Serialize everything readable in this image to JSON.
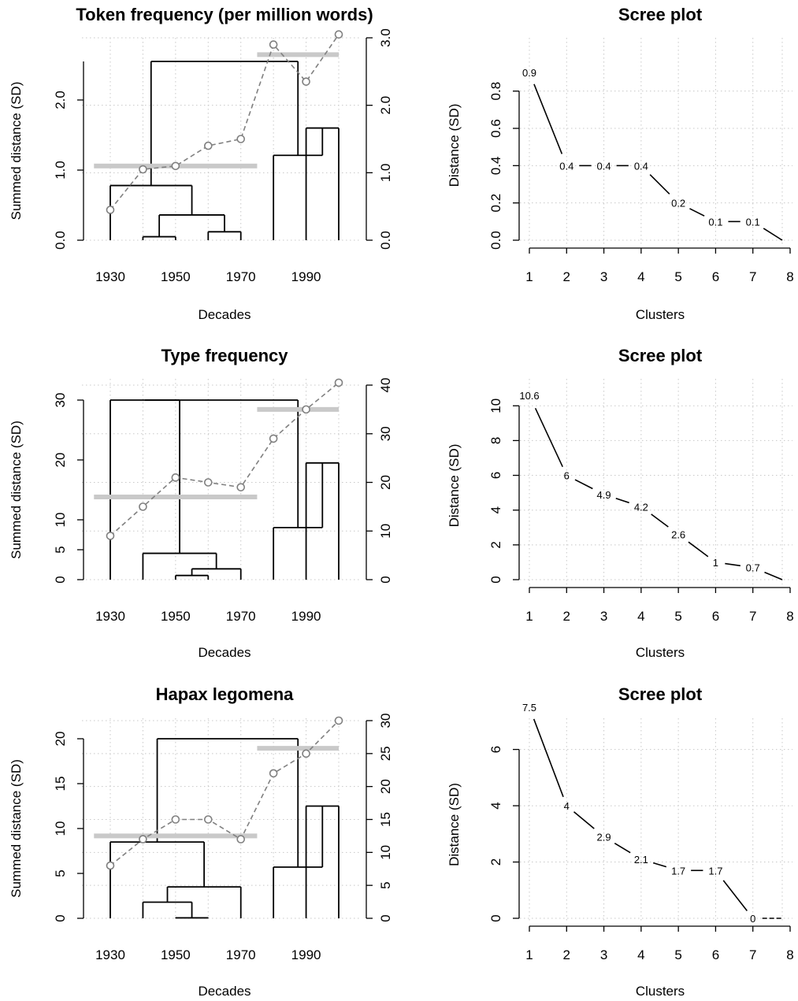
{
  "chart_data": [
    {
      "type": "dendrogram",
      "title": "Token frequency (per million words)",
      "xlabel": "Decades",
      "ylabel": "Summed distance (SD)",
      "x_ticks": [
        "1930",
        "1950",
        "1970",
        "1990"
      ],
      "xlim": [
        1925,
        2000
      ],
      "ylim": [
        0,
        2.55
      ],
      "y_ticks": [
        "0.0",
        "1.0",
        "2.0"
      ],
      "y2lim": [
        0,
        3.0
      ],
      "y2_ticks": [
        "0.0",
        "1.0",
        "2.0",
        "3.0"
      ],
      "grid": true,
      "decades": [
        1930,
        1940,
        1950,
        1960,
        1970,
        1980,
        1990,
        2000
      ],
      "merges": [
        {
          "left": 1940,
          "right": 1950,
          "height": 0.05
        },
        {
          "left": 1960,
          "right": 1970,
          "height": 0.12
        },
        {
          "left": 1945,
          "right": 1965,
          "height": 0.36
        },
        {
          "left": 1930,
          "right": 1955,
          "height": 0.78
        },
        {
          "left": 1990,
          "right": 2000,
          "height": 1.6
        },
        {
          "left": 1980,
          "right": 1995,
          "height": 1.21
        },
        {
          "left": 1950,
          "right": 1990,
          "height": 2.55
        }
      ],
      "merge_structure": [
        [
          1940,
          1950
        ],
        [
          1960,
          1970
        ],
        [
          "m0",
          "m1"
        ],
        [
          1930,
          "m2"
        ],
        [
          1990,
          2000
        ],
        [
          1980,
          "m4"
        ],
        [
          "m3",
          "m5"
        ]
      ],
      "series": [
        {
          "x": [
            1930,
            1940,
            1950,
            1960,
            1970,
            1980,
            1990,
            2000
          ],
          "values": [
            0.45,
            1.05,
            1.1,
            1.4,
            1.5,
            2.9,
            2.35,
            3.05
          ]
        }
      ],
      "cluster_means": [
        {
          "x_from": 1925,
          "x_to": 1975,
          "value": 1.1
        },
        {
          "x_from": 1975,
          "x_to": 2000,
          "value": 2.75
        }
      ]
    },
    {
      "type": "line",
      "title": "Scree plot",
      "xlabel": "Clusters",
      "ylabel": "Distance (SD)",
      "x": [
        1,
        2,
        3,
        4,
        5,
        6,
        7,
        8
      ],
      "values": [
        0.9,
        0.4,
        0.4,
        0.4,
        0.2,
        0.1,
        0.1,
        0
      ],
      "value_labels": [
        "0.9",
        "0.4",
        "0.4",
        "0.4",
        "0.2",
        "0.1",
        "0.1",
        ""
      ],
      "xlim": [
        1,
        8
      ],
      "ylim": [
        0,
        0.9
      ],
      "x_ticks": [
        "1",
        "2",
        "3",
        "4",
        "5",
        "6",
        "7",
        "8"
      ],
      "y_ticks": [
        "0.0",
        "0.2",
        "0.4",
        "0.6",
        "0.8"
      ],
      "grid": true
    },
    {
      "type": "dendrogram",
      "title": "Type frequency",
      "xlabel": "Decades",
      "ylabel": "Summed distance (SD)",
      "x_ticks": [
        "1930",
        "1950",
        "1970",
        "1990"
      ],
      "xlim": [
        1925,
        2000
      ],
      "ylim": [
        0,
        30
      ],
      "y_ticks": [
        "0",
        "5",
        "10",
        "20",
        "30"
      ],
      "y2lim": [
        0,
        40
      ],
      "y2_ticks": [
        "0",
        "10",
        "20",
        "30",
        "40"
      ],
      "grid": true,
      "decades": [
        1930,
        1940,
        1950,
        1960,
        1970,
        1980,
        1990,
        2000
      ],
      "merges": [
        {
          "left": 1950,
          "right": 1960,
          "height": 0.7
        },
        {
          "left": 1955,
          "right": 1970,
          "height": 1.8
        },
        {
          "left": 1940,
          "right": 1962.5,
          "height": 4.4
        },
        {
          "left": 1930,
          "right": 1951.25,
          "height": 30
        },
        {
          "left": 1990,
          "right": 2000,
          "height": 19.5
        },
        {
          "left": 1980,
          "right": 1995,
          "height": 8.7
        },
        {
          "left": 1950,
          "right": 1990,
          "height": 30
        }
      ],
      "merge_structure": [
        [
          1950,
          1960
        ],
        [
          "m0",
          1970
        ],
        [
          1940,
          "m1"
        ],
        [
          1930,
          "m2"
        ],
        [
          1990,
          2000
        ],
        [
          1980,
          "m4"
        ],
        [
          "m3",
          "m5"
        ]
      ],
      "series": [
        {
          "x": [
            1930,
            1940,
            1950,
            1960,
            1970,
            1980,
            1990,
            2000
          ],
          "values": [
            9,
            15,
            21,
            20,
            19,
            29,
            35,
            40.5
          ]
        }
      ],
      "cluster_means": [
        {
          "x_from": 1925,
          "x_to": 1975,
          "value": 17
        },
        {
          "x_from": 1975,
          "x_to": 2000,
          "value": 35
        }
      ]
    },
    {
      "type": "line",
      "title": "Scree plot",
      "xlabel": "Clusters",
      "ylabel": "Distance (SD)",
      "x": [
        1,
        2,
        3,
        4,
        5,
        6,
        7,
        8
      ],
      "values": [
        10.6,
        6,
        4.9,
        4.2,
        2.6,
        1,
        0.7,
        0
      ],
      "value_labels": [
        "10.6",
        "6",
        "4.9",
        "4.2",
        "2.6",
        "1",
        "0.7",
        ""
      ],
      "xlim": [
        1,
        8
      ],
      "ylim": [
        0,
        10.6
      ],
      "x_ticks": [
        "1",
        "2",
        "3",
        "4",
        "5",
        "6",
        "7",
        "8"
      ],
      "y_ticks": [
        "0",
        "2",
        "4",
        "6",
        "8",
        "10"
      ],
      "grid": true
    },
    {
      "type": "dendrogram",
      "title": "Hapax legomena",
      "xlabel": "Decades",
      "ylabel": "Summed distance (SD)",
      "x_ticks": [
        "1930",
        "1950",
        "1970",
        "1990"
      ],
      "xlim": [
        1925,
        2000
      ],
      "ylim": [
        0,
        20
      ],
      "y_ticks": [
        "0",
        "5",
        "10",
        "15",
        "20"
      ],
      "y2lim": [
        0,
        30
      ],
      "y2_ticks": [
        "0",
        "5",
        "10",
        "15",
        "20",
        "25",
        "30"
      ],
      "grid": true,
      "decades": [
        1930,
        1940,
        1950,
        1960,
        1970,
        1980,
        1990,
        2000
      ],
      "merges": [
        {
          "left": 1950,
          "right": 1960,
          "height": 0.05
        },
        {
          "left": 1940,
          "right": 1955,
          "height": 1.8
        },
        {
          "left": 1955,
          "right": 1970,
          "height": 3.5
        },
        {
          "left": 1930,
          "right": 1950,
          "height": 8.5
        },
        {
          "left": 1990,
          "right": 2000,
          "height": 12.5
        },
        {
          "left": 1980,
          "right": 1995,
          "height": 5.7
        },
        {
          "left": 1950,
          "right": 1990,
          "height": 20
        }
      ],
      "merge_structure": [
        [
          1950,
          1960
        ],
        [
          1940,
          "m0"
        ],
        [
          "m1",
          1970
        ],
        [
          1930,
          "m2"
        ],
        [
          1990,
          2000
        ],
        [
          1980,
          "m4"
        ],
        [
          "m3",
          "m5"
        ]
      ],
      "series": [
        {
          "x": [
            1930,
            1940,
            1950,
            1960,
            1970,
            1980,
            1990,
            2000
          ],
          "values": [
            8,
            12,
            15,
            15,
            12,
            22,
            25,
            30
          ]
        }
      ],
      "cluster_means": [
        {
          "x_from": 1925,
          "x_to": 1975,
          "value": 12.5
        },
        {
          "x_from": 1975,
          "x_to": 2000,
          "value": 25.8
        }
      ]
    },
    {
      "type": "line",
      "title": "Scree plot",
      "xlabel": "Clusters",
      "ylabel": "Distance (SD)",
      "x": [
        1,
        2,
        3,
        4,
        5,
        6,
        7,
        8
      ],
      "values": [
        7.5,
        4,
        2.9,
        2.1,
        1.7,
        1.7,
        0,
        0
      ],
      "value_labels": [
        "7.5",
        "4",
        "2.9",
        "2.1",
        "1.7",
        "1.7",
        "0",
        ""
      ],
      "last_segment_dashed": true,
      "xlim": [
        1,
        8
      ],
      "ylim": [
        0,
        7.5
      ],
      "x_ticks": [
        "1",
        "2",
        "3",
        "4",
        "5",
        "6",
        "7",
        "8"
      ],
      "y_ticks": [
        "0",
        "2",
        "4",
        "6"
      ],
      "grid": true
    }
  ]
}
